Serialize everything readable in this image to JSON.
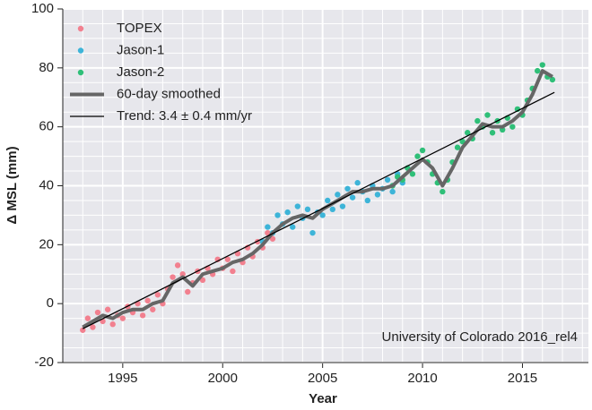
{
  "chart_data": {
    "type": "scatter",
    "xlabel": "Year",
    "ylabel": "Δ MSL (mm)",
    "annotation": "University of Colorado 2016_rel4",
    "xlim": [
      1992,
      2018.3
    ],
    "ylim": [
      -20,
      100
    ],
    "xticks": [
      1995,
      2000,
      2005,
      2010,
      2015
    ],
    "yticks": [
      -20,
      0,
      20,
      40,
      60,
      80,
      100
    ],
    "xminor": [
      1992,
      1993,
      1994,
      1995,
      1996,
      1997,
      1998,
      1999,
      2000,
      2001,
      2002,
      2003,
      2004,
      2005,
      2006,
      2007,
      2008,
      2009,
      2010,
      2011,
      2012,
      2013,
      2014,
      2015,
      2016,
      2017,
      2018
    ],
    "yminor": [
      -20,
      -15,
      -10,
      -5,
      0,
      5,
      10,
      15,
      20,
      25,
      30,
      35,
      40,
      45,
      50,
      55,
      60,
      65,
      70,
      75,
      80,
      85,
      90,
      95,
      100
    ],
    "grid": true,
    "legend": "upper left",
    "series": [
      {
        "name": "TOPEX",
        "kind": "scatter",
        "color": "#f2808f",
        "x": [
          1993.0,
          1993.25,
          1993.5,
          1993.75,
          1994.0,
          1994.25,
          1994.5,
          1994.75,
          1995.0,
          1995.25,
          1995.5,
          1995.75,
          1996.0,
          1996.25,
          1996.5,
          1996.75,
          1997.0,
          1997.25,
          1997.5,
          1997.75,
          1998.0,
          1998.25,
          1998.5,
          1998.75,
          1999.0,
          1999.25,
          1999.5,
          1999.75,
          2000.0,
          2000.25,
          2000.5,
          2000.75,
          2001.0,
          2001.25,
          2001.5,
          2001.75,
          2002.0,
          2002.25,
          2002.5
        ],
        "values": [
          -9,
          -5,
          -8,
          -3,
          -6,
          -2,
          -7,
          -4,
          -5,
          -1,
          -3,
          0,
          -4,
          1,
          -2,
          3,
          0,
          5,
          9,
          13,
          10,
          4,
          7,
          11,
          8,
          12,
          10,
          15,
          12,
          15,
          11,
          17,
          14,
          19,
          16,
          21,
          19,
          24,
          22
        ]
      },
      {
        "name": "Jason-1",
        "kind": "scatter",
        "color": "#3db4d8",
        "x": [
          2002.0,
          2002.25,
          2002.5,
          2002.75,
          2003.0,
          2003.25,
          2003.5,
          2003.75,
          2004.0,
          2004.25,
          2004.5,
          2004.75,
          2005.0,
          2005.25,
          2005.5,
          2005.75,
          2006.0,
          2006.25,
          2006.5,
          2006.75,
          2007.0,
          2007.25,
          2007.5,
          2007.75,
          2008.0,
          2008.25,
          2008.5,
          2008.75,
          2009.0
        ],
        "values": [
          21,
          26,
          24,
          30,
          27,
          31,
          26,
          33,
          29,
          32,
          24,
          31,
          30,
          35,
          32,
          37,
          33,
          39,
          36,
          41,
          38,
          35,
          40,
          37,
          39,
          42,
          38,
          44,
          41
        ]
      },
      {
        "name": "Jason-2",
        "kind": "scatter",
        "color": "#2fbf78",
        "x": [
          2008.5,
          2008.75,
          2009.0,
          2009.25,
          2009.5,
          2009.75,
          2010.0,
          2010.25,
          2010.5,
          2010.75,
          2011.0,
          2011.25,
          2011.5,
          2011.75,
          2012.0,
          2012.25,
          2012.5,
          2012.75,
          2013.0,
          2013.25,
          2013.5,
          2013.75,
          2014.0,
          2014.25,
          2014.5,
          2014.75,
          2015.0,
          2015.25,
          2015.5,
          2015.75,
          2016.0,
          2016.25,
          2016.5
        ],
        "values": [
          40,
          43,
          42,
          46,
          44,
          50,
          52,
          48,
          44,
          41,
          38,
          42,
          48,
          53,
          55,
          58,
          56,
          62,
          60,
          64,
          58,
          62,
          59,
          63,
          60,
          66,
          64,
          69,
          73,
          79,
          81,
          77,
          76
        ]
      },
      {
        "name": "60-day smoothed",
        "kind": "line",
        "color": "#666666",
        "width": 4,
        "x": [
          1993,
          1993.5,
          1994,
          1994.5,
          1995,
          1995.5,
          1996,
          1996.5,
          1997,
          1997.5,
          1998,
          1998.5,
          1999,
          1999.5,
          2000,
          2000.5,
          2001,
          2001.5,
          2002,
          2002.5,
          2003,
          2003.5,
          2004,
          2004.5,
          2005,
          2005.5,
          2006,
          2006.5,
          2007,
          2007.5,
          2008,
          2008.5,
          2009,
          2009.5,
          2010,
          2010.5,
          2011,
          2011.5,
          2012,
          2012.5,
          2013,
          2013.5,
          2014,
          2014.5,
          2015,
          2015.5,
          2016,
          2016.5
        ],
        "values": [
          -8,
          -6,
          -4,
          -5,
          -3,
          -2,
          -2,
          0,
          1,
          7,
          9,
          6,
          10,
          11,
          12,
          14,
          15,
          17,
          20,
          24,
          27,
          29,
          30,
          29,
          32,
          34,
          36,
          38,
          38,
          39,
          39,
          40,
          43,
          46,
          49,
          46,
          40,
          46,
          53,
          57,
          61,
          60,
          60,
          62,
          65,
          71,
          79,
          77
        ]
      },
      {
        "name": "Trend: 3.4 ± 0.4 mm/yr",
        "kind": "line",
        "color": "#000000",
        "width": 1.3,
        "x": [
          1993,
          2016.6
        ],
        "values": [
          -8.5,
          71.7
        ]
      }
    ]
  }
}
